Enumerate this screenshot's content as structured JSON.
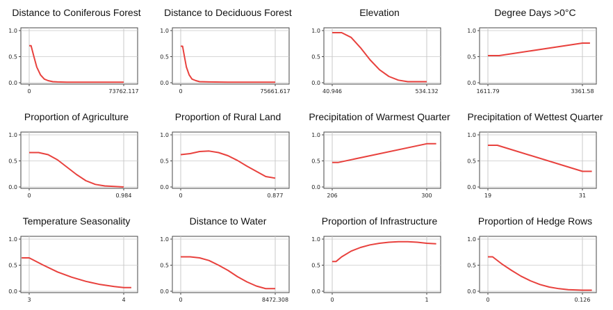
{
  "chart_data": [
    {
      "type": "line",
      "title": "Distance to Coniferous Forest",
      "xticks": [
        "0",
        "73762.117"
      ],
      "yticks": [
        "0.0",
        "0.5",
        "1.0"
      ],
      "ylim": [
        0,
        1
      ],
      "grid": true,
      "x": [
        0,
        0.02,
        0.05,
        0.08,
        0.12,
        0.16,
        0.2,
        0.25,
        0.3,
        0.4,
        0.6,
        1.0
      ],
      "y": [
        0.71,
        0.71,
        0.5,
        0.3,
        0.15,
        0.07,
        0.04,
        0.02,
        0.015,
        0.01,
        0.01,
        0.01
      ]
    },
    {
      "type": "line",
      "title": "Distance to Deciduous Forest",
      "xticks": [
        "0",
        "75661.617"
      ],
      "yticks": [
        "0.0",
        "0.5",
        "1.0"
      ],
      "ylim": [
        0,
        1
      ],
      "grid": true,
      "x": [
        0,
        0.02,
        0.04,
        0.06,
        0.09,
        0.12,
        0.16,
        0.2,
        0.3,
        0.5,
        1.0
      ],
      "y": [
        0.7,
        0.7,
        0.5,
        0.3,
        0.15,
        0.07,
        0.04,
        0.02,
        0.015,
        0.01,
        0.01
      ]
    },
    {
      "type": "line",
      "title": "Elevation",
      "xticks": [
        "40.946",
        "534.132"
      ],
      "yticks": [
        "0.0",
        "0.5",
        "1.0"
      ],
      "ylim": [
        0,
        1
      ],
      "grid": true,
      "x": [
        0,
        0.1,
        0.2,
        0.3,
        0.4,
        0.5,
        0.6,
        0.7,
        0.8,
        1.0
      ],
      "y": [
        0.96,
        0.96,
        0.87,
        0.67,
        0.44,
        0.25,
        0.12,
        0.05,
        0.02,
        0.02
      ]
    },
    {
      "type": "line",
      "title": "Degree Days >0°C",
      "xticks": [
        "1611.79",
        "3361.58"
      ],
      "yticks": [
        "0.0",
        "0.5",
        "1.0"
      ],
      "ylim": [
        0,
        1
      ],
      "grid": true,
      "x": [
        0,
        0.12,
        1.0,
        1.08
      ],
      "y": [
        0.52,
        0.52,
        0.76,
        0.76
      ]
    },
    {
      "type": "line",
      "title": "Proportion of Agriculture",
      "xticks": [
        "0",
        "0.984"
      ],
      "yticks": [
        "0.0",
        "0.5",
        "1.0"
      ],
      "ylim": [
        0,
        1
      ],
      "grid": true,
      "x": [
        0,
        0.1,
        0.2,
        0.3,
        0.4,
        0.5,
        0.6,
        0.7,
        0.8,
        0.9,
        1.0
      ],
      "y": [
        0.66,
        0.66,
        0.62,
        0.52,
        0.38,
        0.24,
        0.12,
        0.05,
        0.02,
        0.01,
        0.0
      ]
    },
    {
      "type": "line",
      "title": "Proportion of Rural Land",
      "xticks": [
        "0",
        "0.877"
      ],
      "yticks": [
        "0.0",
        "0.5",
        "1.0"
      ],
      "ylim": [
        0,
        1
      ],
      "grid": true,
      "x": [
        0,
        0.1,
        0.2,
        0.3,
        0.4,
        0.5,
        0.6,
        0.7,
        0.8,
        0.9,
        1.0
      ],
      "y": [
        0.62,
        0.64,
        0.68,
        0.69,
        0.66,
        0.6,
        0.51,
        0.4,
        0.3,
        0.2,
        0.17
      ]
    },
    {
      "type": "line",
      "title": "Precipitation of Warmest Quarter",
      "xticks": [
        "206",
        "300"
      ],
      "yticks": [
        "0.0",
        "0.5",
        "1.0"
      ],
      "ylim": [
        0,
        1
      ],
      "grid": true,
      "x": [
        0,
        0.06,
        1.0,
        1.1
      ],
      "y": [
        0.47,
        0.47,
        0.83,
        0.83
      ]
    },
    {
      "type": "line",
      "title": "Precipitation of Wettest Quarter",
      "xticks": [
        "19",
        "31"
      ],
      "yticks": [
        "0.0",
        "0.5",
        "1.0"
      ],
      "ylim": [
        0,
        1
      ],
      "grid": true,
      "x": [
        0,
        0.1,
        1.0,
        1.1
      ],
      "y": [
        0.8,
        0.8,
        0.3,
        0.3
      ]
    },
    {
      "type": "line",
      "title": "Temperature Seasonality",
      "xticks": [
        "3",
        "4"
      ],
      "yticks": [
        "0.0",
        "0.5",
        "1.0"
      ],
      "ylim": [
        0,
        1
      ],
      "grid": true,
      "x": [
        -0.08,
        0,
        0.15,
        0.3,
        0.45,
        0.6,
        0.75,
        0.9,
        1.0,
        1.08
      ],
      "y": [
        0.64,
        0.64,
        0.5,
        0.37,
        0.27,
        0.19,
        0.13,
        0.09,
        0.07,
        0.07
      ]
    },
    {
      "type": "line",
      "title": "Distance to Water",
      "xticks": [
        "0",
        "8472.308"
      ],
      "yticks": [
        "0.0",
        "0.5",
        "1.0"
      ],
      "ylim": [
        0,
        1
      ],
      "grid": true,
      "x": [
        0,
        0.1,
        0.2,
        0.3,
        0.4,
        0.5,
        0.6,
        0.7,
        0.8,
        0.9,
        1.0
      ],
      "y": [
        0.66,
        0.66,
        0.64,
        0.59,
        0.5,
        0.4,
        0.28,
        0.18,
        0.1,
        0.05,
        0.05
      ]
    },
    {
      "type": "line",
      "title": "Proportion of Infrastructure",
      "xticks": [
        "0",
        "1"
      ],
      "yticks": [
        "0.0",
        "0.5",
        "1.0"
      ],
      "ylim": [
        0,
        1
      ],
      "grid": true,
      "x": [
        0,
        0.04,
        0.1,
        0.2,
        0.3,
        0.4,
        0.5,
        0.6,
        0.7,
        0.8,
        0.9,
        1.0,
        1.1
      ],
      "y": [
        0.57,
        0.57,
        0.66,
        0.77,
        0.84,
        0.89,
        0.92,
        0.94,
        0.95,
        0.95,
        0.94,
        0.92,
        0.91
      ]
    },
    {
      "type": "line",
      "title": "Proportion of Hedge Rows",
      "xticks": [
        "0",
        "0.126"
      ],
      "yticks": [
        "0.0",
        "0.5",
        "1.0"
      ],
      "ylim": [
        0,
        1
      ],
      "grid": true,
      "x": [
        0,
        0.05,
        0.15,
        0.25,
        0.35,
        0.45,
        0.55,
        0.65,
        0.75,
        0.85,
        1.0,
        1.1
      ],
      "y": [
        0.66,
        0.66,
        0.52,
        0.4,
        0.29,
        0.2,
        0.13,
        0.08,
        0.05,
        0.03,
        0.02,
        0.02
      ]
    }
  ],
  "colors": {
    "curve": "#e8413d",
    "grid": "#c8c8c8",
    "axis": "#444444"
  }
}
